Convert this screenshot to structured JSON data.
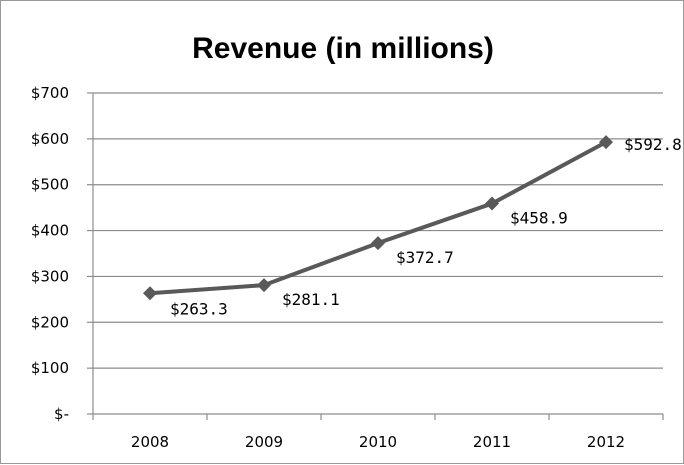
{
  "chart_data": {
    "type": "line",
    "title": "Revenue (in millions)",
    "xlabel": "",
    "ylabel": "",
    "categories": [
      "2008",
      "2009",
      "2010",
      "2011",
      "2012"
    ],
    "series": [
      {
        "values": [
          263.3,
          281.1,
          372.7,
          458.9,
          592.8
        ]
      }
    ],
    "data_labels": [
      "$263.3",
      "$281.1",
      "$372.7",
      "$458.9",
      "$592.8"
    ],
    "ylim": [
      0,
      700
    ],
    "yticks": [
      0,
      100,
      200,
      300,
      400,
      500,
      600,
      700
    ],
    "ytick_labels": [
      "$-",
      "$100",
      "$200",
      "$300",
      "$400",
      "$500",
      "$600",
      "$700"
    ],
    "grid": true,
    "legend": false,
    "line_color": "#595959",
    "marker": "diamond"
  }
}
